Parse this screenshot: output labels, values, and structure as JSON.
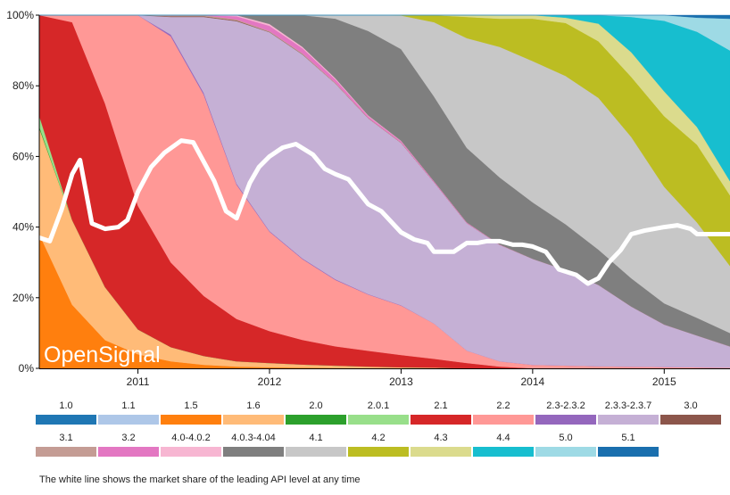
{
  "chart_data": {
    "type": "area",
    "stacking": "percent",
    "title": "",
    "xlabel": "",
    "ylabel": "",
    "watermark": "OpenSignal",
    "ylim": [
      0,
      100
    ],
    "y_ticks": [
      "0%",
      "20%",
      "40%",
      "60%",
      "80%",
      "100%"
    ],
    "x_ticks": [
      {
        "label": "2011",
        "x": 2011
      },
      {
        "label": "2012",
        "x": 2012
      },
      {
        "label": "2013",
        "x": 2013
      },
      {
        "label": "2014",
        "x": 2014
      },
      {
        "label": "2015",
        "x": 2015
      }
    ],
    "xlim": [
      2010.25,
      2015.5
    ],
    "x": [
      2010.25,
      2010.5,
      2010.75,
      2011.0,
      2011.25,
      2011.5,
      2011.75,
      2012.0,
      2012.25,
      2012.5,
      2012.75,
      2013.0,
      2013.25,
      2013.5,
      2013.75,
      2014.0,
      2014.25,
      2014.5,
      2014.75,
      2015.0,
      2015.25,
      2015.5
    ],
    "series": [
      {
        "name": "1.0",
        "color": "#1f77b4",
        "values": [
          0,
          0,
          0,
          0,
          0,
          0,
          0,
          0,
          0,
          0,
          0,
          0,
          0,
          0,
          0,
          0,
          0,
          0,
          0,
          0,
          0,
          0
        ]
      },
      {
        "name": "1.1",
        "color": "#aec7e8",
        "values": [
          0,
          0,
          0,
          0,
          0,
          0,
          0,
          0,
          0,
          0,
          0,
          0,
          0,
          0,
          0,
          0,
          0,
          0,
          0,
          0,
          0,
          0
        ]
      },
      {
        "name": "1.5",
        "color": "#ff7f0e",
        "values": [
          38,
          18,
          8,
          4,
          2,
          1,
          0.5,
          0.3,
          0.2,
          0.1,
          0,
          0,
          0,
          0,
          0,
          0,
          0,
          0,
          0,
          0,
          0,
          0
        ]
      },
      {
        "name": "1.6",
        "color": "#ffbb78",
        "values": [
          30,
          24,
          15,
          7,
          4,
          2.5,
          1.5,
          1.2,
          0.9,
          0.7,
          0.5,
          0.3,
          0.2,
          0,
          0,
          0,
          0,
          0,
          0,
          0,
          0,
          0
        ]
      },
      {
        "name": "2.0",
        "color": "#2ca02c",
        "values": [
          0.5,
          0,
          0,
          0,
          0,
          0,
          0,
          0,
          0,
          0,
          0,
          0,
          0,
          0,
          0,
          0,
          0,
          0,
          0,
          0,
          0,
          0
        ]
      },
      {
        "name": "2.0.1",
        "color": "#98df8a",
        "values": [
          3,
          0,
          0,
          0,
          0,
          0,
          0,
          0,
          0,
          0,
          0,
          0,
          0,
          0,
          0,
          0,
          0,
          0,
          0,
          0,
          0,
          0
        ]
      },
      {
        "name": "2.1",
        "color": "#d62728",
        "values": [
          28.5,
          56,
          52,
          35,
          24,
          17,
          12,
          9,
          7,
          5.5,
          4.5,
          3.5,
          2.5,
          1.5,
          0.5,
          0,
          0,
          0,
          0,
          0,
          0,
          0
        ]
      },
      {
        "name": "2.2",
        "color": "#ff9896",
        "values": [
          0,
          2,
          25,
          54,
          64,
          57,
          38,
          28,
          23,
          19,
          16,
          14,
          10,
          3.5,
          1.5,
          1,
          0.8,
          0.6,
          0.5,
          0.4,
          0.3,
          0.2
        ]
      },
      {
        "name": "2.3-2.3.2",
        "color": "#9467bd",
        "values": [
          0,
          0,
          0,
          0,
          0.5,
          0.5,
          0.3,
          0.2,
          0.2,
          0.2,
          0.1,
          0.1,
          0,
          0,
          0,
          0,
          0,
          0,
          0,
          0,
          0,
          0
        ]
      },
      {
        "name": "2.3.3-2.3.7",
        "color": "#c5b0d5",
        "values": [
          0,
          0,
          0,
          0,
          5,
          21.5,
          46,
          56,
          58,
          56,
          50,
          46,
          40,
          36,
          33,
          30,
          27,
          23,
          17,
          12,
          9,
          6
        ]
      },
      {
        "name": "3.0",
        "color": "#8c564b",
        "values": [
          0,
          0,
          0,
          0,
          0.2,
          0.2,
          0.2,
          0.1,
          0.1,
          0,
          0,
          0,
          0,
          0,
          0,
          0,
          0,
          0,
          0,
          0,
          0,
          0
        ]
      },
      {
        "name": "3.1",
        "color": "#c49c94",
        "values": [
          0,
          0,
          0,
          0,
          0.2,
          0.3,
          0.3,
          0.2,
          0.2,
          0.2,
          0.1,
          0.1,
          0,
          0,
          0,
          0,
          0,
          0,
          0,
          0,
          0,
          0
        ]
      },
      {
        "name": "3.2",
        "color": "#e377c2",
        "values": [
          0,
          0,
          0,
          0,
          0.1,
          0,
          0.9,
          1.5,
          1.5,
          1,
          0.5,
          0.4,
          0.3,
          0.2,
          0.1,
          0,
          0,
          0,
          0,
          0,
          0,
          0
        ]
      },
      {
        "name": "4.0-4.0.2",
        "color": "#f7b6d2",
        "values": [
          0,
          0,
          0,
          0,
          0,
          0,
          0.3,
          0.5,
          0.4,
          0.3,
          0.2,
          0.1,
          0,
          0,
          0,
          0,
          0,
          0,
          0,
          0,
          0,
          0
        ]
      },
      {
        "name": "4.0.3-4.04",
        "color": "#7f7f7f",
        "values": [
          0,
          0,
          0,
          0,
          0,
          0,
          0,
          2.5,
          9,
          17,
          24,
          26,
          24,
          21,
          19,
          16,
          13,
          10,
          8,
          6,
          5,
          3.8
        ]
      },
      {
        "name": "4.1",
        "color": "#c7c7c7",
        "values": [
          0,
          0,
          0,
          0,
          0,
          0,
          0,
          0,
          0,
          1,
          4.5,
          9.5,
          21,
          31,
          37,
          40,
          42,
          43,
          40,
          33,
          27,
          19
        ]
      },
      {
        "name": "4.2",
        "color": "#bcbd22",
        "values": [
          0,
          0,
          0,
          0,
          0,
          0,
          0,
          0,
          0,
          0,
          0,
          0.1,
          2,
          6,
          8,
          12,
          15,
          16,
          17,
          20,
          22,
          20
        ]
      },
      {
        "name": "4.3",
        "color": "#dbdb8d",
        "values": [
          0,
          0,
          0,
          0,
          0,
          0,
          0,
          0,
          0,
          0,
          0,
          0,
          0,
          0.5,
          1,
          1,
          1.5,
          5,
          7,
          7,
          5,
          4
        ]
      },
      {
        "name": "4.4",
        "color": "#17becf",
        "values": [
          0,
          0,
          0,
          0,
          0,
          0,
          0,
          0,
          0,
          0,
          0,
          0,
          0,
          0,
          0,
          0,
          0.7,
          2.4,
          10,
          20,
          27,
          37
        ]
      },
      {
        "name": "5.0",
        "color": "#9edae5",
        "values": [
          0,
          0,
          0,
          0,
          0,
          0,
          0,
          0,
          0,
          0,
          0,
          0,
          0,
          0,
          0,
          0,
          0,
          0,
          0.5,
          1.6,
          4,
          9
        ]
      },
      {
        "name": "5.1",
        "color": "#1a6fae",
        "values": [
          0,
          0,
          0,
          0,
          0,
          0,
          0,
          0,
          0,
          0,
          0,
          0,
          0,
          0,
          0,
          0,
          0,
          0,
          0,
          0,
          0.7,
          1
        ]
      }
    ],
    "leading_line": {
      "name": "Leading API level market share",
      "color": "#ffffff",
      "x": [
        2010.25,
        2010.33,
        2010.42,
        2010.5,
        2010.56,
        2010.65,
        2010.75,
        2010.85,
        2010.92,
        2011.0,
        2011.1,
        2011.2,
        2011.33,
        2011.42,
        2011.5,
        2011.58,
        2011.67,
        2011.75,
        2011.85,
        2011.92,
        2012.0,
        2012.1,
        2012.2,
        2012.33,
        2012.42,
        2012.5,
        2012.6,
        2012.75,
        2012.85,
        2013.0,
        2013.1,
        2013.2,
        2013.25,
        2013.4,
        2013.5,
        2013.58,
        2013.65,
        2013.75,
        2013.85,
        2013.92,
        2014.0,
        2014.1,
        2014.2,
        2014.33,
        2014.42,
        2014.5,
        2014.58,
        2014.67,
        2014.75,
        2014.85,
        2015.0,
        2015.1,
        2015.2,
        2015.25,
        2015.33,
        2015.42,
        2015.5
      ],
      "values": [
        37,
        36,
        45,
        55,
        59,
        41,
        39.5,
        40,
        42,
        50,
        57,
        61,
        64.5,
        64,
        58.5,
        53,
        44.5,
        42.5,
        52.5,
        57,
        60,
        62.5,
        63.5,
        60.5,
        56.5,
        55,
        53.5,
        46.5,
        44.5,
        38.5,
        36.5,
        35.5,
        33,
        33,
        35.5,
        35.5,
        36,
        36,
        35,
        35,
        34.5,
        33,
        28,
        26.5,
        24,
        25.5,
        30,
        33.5,
        38,
        39,
        40,
        40.5,
        39.5,
        38,
        38,
        38,
        38
      ]
    }
  },
  "legend": {
    "row1": [
      {
        "label": "1.0",
        "color": "#1f77b4"
      },
      {
        "label": "1.1",
        "color": "#aec7e8"
      },
      {
        "label": "1.5",
        "color": "#ff7f0e"
      },
      {
        "label": "1.6",
        "color": "#ffbb78"
      },
      {
        "label": "2.0",
        "color": "#2ca02c"
      },
      {
        "label": "2.0.1",
        "color": "#98df8a"
      },
      {
        "label": "2.1",
        "color": "#d62728"
      },
      {
        "label": "2.2",
        "color": "#ff9896"
      },
      {
        "label": "2.3-2.3.2",
        "color": "#9467bd"
      },
      {
        "label": "2.3.3-2.3.7",
        "color": "#c5b0d5"
      },
      {
        "label": "3.0",
        "color": "#8c564b"
      }
    ],
    "row2": [
      {
        "label": "3.1",
        "color": "#c49c94"
      },
      {
        "label": "3.2",
        "color": "#e377c2"
      },
      {
        "label": "4.0-4.0.2",
        "color": "#f7b6d2"
      },
      {
        "label": "4.0.3-4.04",
        "color": "#7f7f7f"
      },
      {
        "label": "4.1",
        "color": "#c7c7c7"
      },
      {
        "label": "4.2",
        "color": "#bcbd22"
      },
      {
        "label": "4.3",
        "color": "#dbdb8d"
      },
      {
        "label": "4.4",
        "color": "#17becf"
      },
      {
        "label": "5.0",
        "color": "#9edae5"
      },
      {
        "label": "5.1",
        "color": "#1a6fae"
      }
    ]
  },
  "footnote": "The white line shows the market share of the leading API level at any time"
}
